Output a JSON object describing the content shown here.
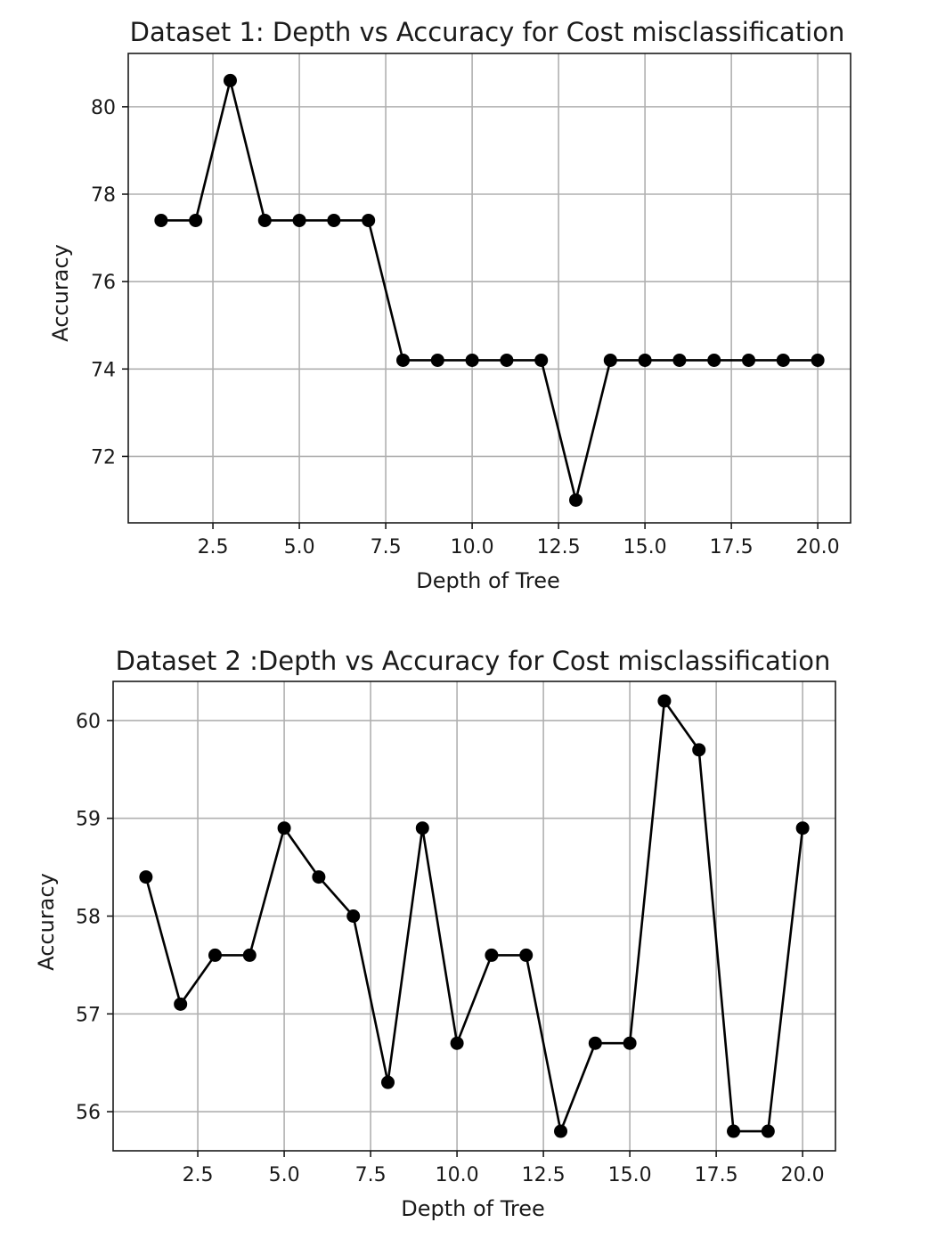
{
  "chart_data": [
    {
      "type": "line",
      "title": "Dataset 1: Depth vs Accuracy for Cost misclassification",
      "xlabel": "Depth of Tree",
      "ylabel": "Accuracy",
      "xlim": [
        0.05,
        20.95
      ],
      "ylim": [
        70.48,
        81.22
      ],
      "xticks": [
        2.5,
        5.0,
        7.5,
        10.0,
        12.5,
        15.0,
        17.5,
        20.0
      ],
      "xtick_labels": [
        "2.5",
        "5.0",
        "7.5",
        "10.0",
        "12.5",
        "15.0",
        "17.5",
        "20.0"
      ],
      "yticks": [
        72,
        74,
        76,
        78,
        80
      ],
      "ytick_labels": [
        "72",
        "74",
        "76",
        "78",
        "80"
      ],
      "grid": true,
      "color": "#000000",
      "series": [
        {
          "x": [
            1,
            2,
            3,
            4,
            5,
            6,
            7,
            8,
            9,
            10,
            11,
            12,
            13,
            14,
            15,
            16,
            17,
            18,
            19,
            20
          ],
          "values": [
            77.4,
            77.4,
            80.6,
            77.4,
            77.4,
            77.4,
            77.4,
            74.2,
            74.2,
            74.2,
            74.2,
            74.2,
            71.0,
            74.2,
            74.2,
            74.2,
            74.2,
            74.2,
            74.2,
            74.2
          ]
        }
      ]
    },
    {
      "type": "line",
      "title": "Dataset 2 :Depth vs Accuracy for Cost misclassification",
      "xlabel": "Depth of Tree",
      "ylabel": "Accuracy",
      "xlim": [
        0.05,
        20.95
      ],
      "ylim": [
        55.6,
        60.4
      ],
      "xticks": [
        2.5,
        5.0,
        7.5,
        10.0,
        12.5,
        15.0,
        17.5,
        20.0
      ],
      "xtick_labels": [
        "2.5",
        "5.0",
        "7.5",
        "10.0",
        "12.5",
        "15.0",
        "17.5",
        "20.0"
      ],
      "yticks": [
        56,
        57,
        58,
        59,
        60
      ],
      "ytick_labels": [
        "56",
        "57",
        "58",
        "59",
        "60"
      ],
      "grid": true,
      "color": "#000000",
      "series": [
        {
          "x": [
            1,
            2,
            3,
            4,
            5,
            6,
            7,
            8,
            9,
            10,
            11,
            12,
            13,
            14,
            15,
            16,
            17,
            18,
            19,
            20
          ],
          "values": [
            58.4,
            57.1,
            57.6,
            57.6,
            58.9,
            58.4,
            58.0,
            56.3,
            58.9,
            56.7,
            57.6,
            57.6,
            55.8,
            56.7,
            56.7,
            60.2,
            59.7,
            55.8,
            55.8,
            58.9
          ]
        }
      ]
    }
  ]
}
